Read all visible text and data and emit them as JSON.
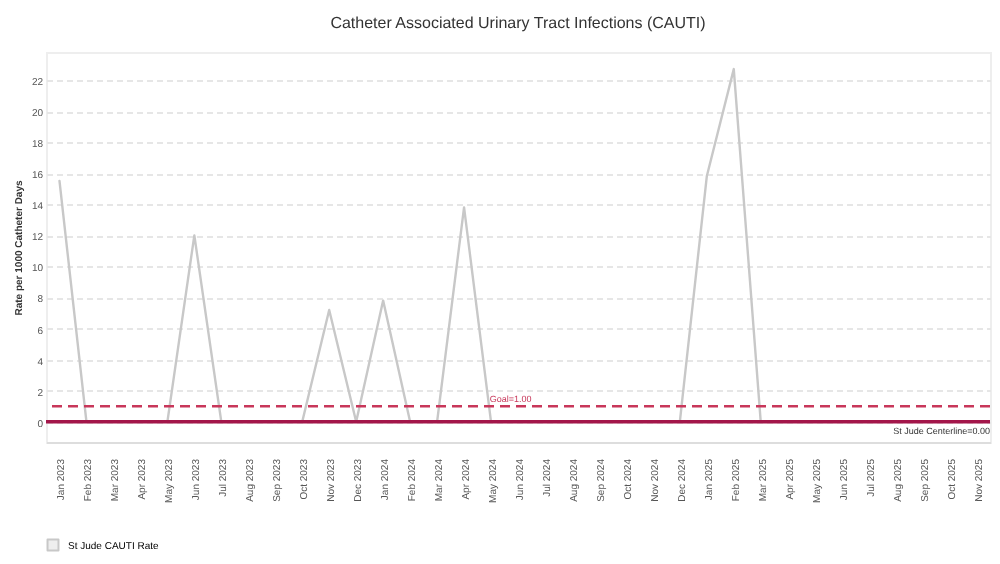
{
  "chart_data": {
    "type": "line",
    "title": "Catheter Associated Urinary Tract Infections (CAUTI)",
    "ylabel": "Rate per 1000 Catheter Days",
    "categories": [
      "Jan 2023",
      "Feb 2023",
      "Mar 2023",
      "Apr 2023",
      "May 2023",
      "Jun 2023",
      "Jul 2023",
      "Aug 2023",
      "Sep 2023",
      "Oct 2023",
      "Nov 2023",
      "Dec 2023",
      "Jan 2024",
      "Feb 2024",
      "Mar 2024",
      "Apr 2024",
      "May 2024",
      "Jun 2024",
      "Jul 2024",
      "Aug 2024",
      "Sep 2024",
      "Oct 2024",
      "Nov 2024",
      "Dec 2024",
      "Jan 2025",
      "Feb 2025",
      "Mar 2025",
      "Apr 2025",
      "May 2025",
      "Jun 2025",
      "Jul 2025",
      "Aug 2025",
      "Sep 2025",
      "Oct 2025",
      "Nov 2025"
    ],
    "series": [
      {
        "name": "St Jude CAUTI Rate",
        "color": "#c8c8c8",
        "values": [
          15.5,
          0,
          0,
          0,
          0,
          12,
          0,
          0,
          0,
          0,
          7.2,
          0,
          7.8,
          0,
          0,
          13.8,
          0,
          0,
          0,
          0,
          0,
          0,
          0,
          0,
          15.8,
          22.7,
          0,
          null,
          null,
          null,
          null,
          null,
          null,
          null,
          null
        ]
      }
    ],
    "ylim": [
      -1.3,
      23.8
    ],
    "yticks": [
      0,
      2,
      4,
      6,
      8,
      10,
      12,
      14,
      16,
      18,
      20,
      22
    ],
    "grid": "y",
    "legend": "bottom",
    "marker": "none",
    "line_style": "solid",
    "ref_lines": [
      {
        "axis": "y",
        "value": 1,
        "label": "Goal=1.00",
        "color": "#c8375a",
        "line_style": "dashed"
      },
      {
        "axis": "y",
        "value": 0,
        "label": "St Jude Centerline=0.00",
        "color": "#a3164a",
        "line_style": "solid"
      }
    ]
  }
}
